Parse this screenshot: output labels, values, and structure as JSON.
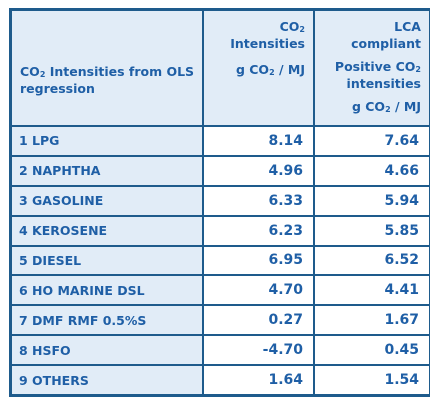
{
  "table": {
    "header": {
      "col1": {
        "co_prefix": "CO",
        "sub": "2",
        "rest": " Intensities from OLS regression"
      },
      "col2": {
        "line1_prefix": "CO",
        "line1_sub": "2",
        "line2": "Intensities",
        "unit_prefix": "g CO",
        "unit_sub": "2",
        "unit_rest": " / MJ"
      },
      "col3": {
        "line1": "LCA",
        "line2": "compliant",
        "line3_prefix": "Positive CO",
        "line3_sub": "2",
        "line4": "intensities",
        "unit_prefix": "g CO",
        "unit_sub": "2",
        "unit_rest": " / MJ"
      }
    },
    "rows": [
      {
        "label": "1 LPG",
        "ols": "8.14",
        "lca": "7.64"
      },
      {
        "label": "2 NAPHTHA",
        "ols": "4.96",
        "lca": "4.66"
      },
      {
        "label": "3 GASOLINE",
        "ols": "6.33",
        "lca": "5.94"
      },
      {
        "label": "4 KEROSENE",
        "ols": "6.23",
        "lca": "5.85"
      },
      {
        "label": "5 DIESEL",
        "ols": "6.95",
        "lca": "6.52"
      },
      {
        "label": "6 HO MARINE DSL",
        "ols": "4.70",
        "lca": "4.41"
      },
      {
        "label": "7 DMF RMF 0.5%S",
        "ols": "0.27",
        "lca": "1.67"
      },
      {
        "label": "8 HSFO",
        "ols": "-4.70",
        "lca": "0.45"
      },
      {
        "label": "9 OTHERS",
        "ols": "1.64",
        "lca": "1.54"
      }
    ],
    "colors": {
      "border": "#1e5b8c",
      "header_bg": "#e1ecf7",
      "text": "#1f5fa6",
      "cell_bg": "#ffffff"
    }
  }
}
